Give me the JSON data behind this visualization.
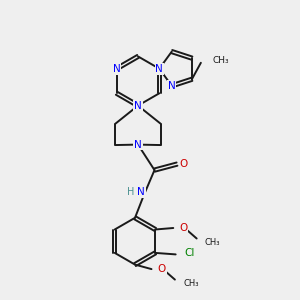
{
  "bg_color": "#efefef",
  "bond_color": "#1a1a1a",
  "n_color": "#0000ff",
  "o_color": "#cc0000",
  "cl_color": "#008000",
  "h_color": "#4a9090",
  "lw": 1.4,
  "dbo": 0.055,
  "xlim": [
    0,
    10
  ],
  "ylim": [
    0,
    10
  ]
}
